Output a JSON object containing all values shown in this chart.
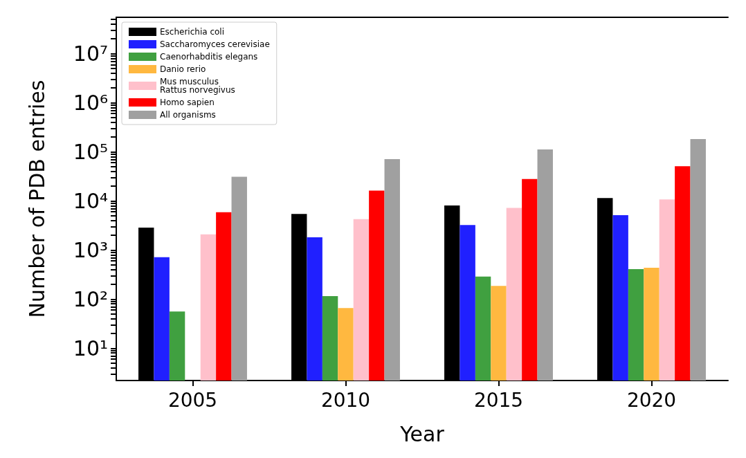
{
  "chart_data": {
    "type": "bar",
    "xlabel": "Year",
    "ylabel": "Number of PDB entries",
    "categories": [
      "2005",
      "2010",
      "2015",
      "2020"
    ],
    "series": [
      {
        "name": "Escherichia coli",
        "color": "#000000",
        "values": [
          2860,
          5430,
          8100,
          11500
        ]
      },
      {
        "name": "Saccharomyces cerevisiae",
        "color": "#2020ff",
        "values": [
          716,
          1820,
          3240,
          5150
        ]
      },
      {
        "name": "Caenorhabditis elegans",
        "color": "#40a040",
        "values": [
          56,
          115,
          288,
          408
        ]
      },
      {
        "name": "Danio rerio",
        "color": "#ffb840",
        "values": [
          null,
          66,
          186,
          436
        ]
      },
      {
        "name": "Mus musculus\nRattus norvegivus",
        "color": "#ffc0cb",
        "values": [
          2090,
          4270,
          7240,
          10700
        ]
      },
      {
        "name": "Homo sapien",
        "color": "#ff0000",
        "values": [
          5900,
          16200,
          28000,
          51000
        ]
      },
      {
        "name": "All organisms",
        "color": "#a0a0a0",
        "values": [
          31000,
          71000,
          112000,
          182000
        ]
      }
    ],
    "log": "y",
    "ylim": [
      2.2,
      55000000
    ],
    "yticks": [
      {
        "value": 3,
        "label": null
      },
      {
        "value": 4,
        "label": null
      },
      {
        "value": 5,
        "label": null
      },
      {
        "value": 6,
        "label": null
      },
      {
        "value": 7,
        "label": null
      },
      {
        "value": 8,
        "label": null
      },
      {
        "value": 9,
        "label": null
      },
      {
        "value": 10,
        "label": "10¹"
      },
      {
        "value": 20,
        "label": null
      },
      {
        "value": 30,
        "label": null
      },
      {
        "value": 40,
        "label": null
      },
      {
        "value": 50,
        "label": null
      },
      {
        "value": 60,
        "label": null
      },
      {
        "value": 70,
        "label": null
      },
      {
        "value": 80,
        "label": null
      },
      {
        "value": 90,
        "label": null
      },
      {
        "value": 100,
        "label": "10²"
      },
      {
        "value": 200,
        "label": null
      },
      {
        "value": 300,
        "label": null
      },
      {
        "value": 400,
        "label": null
      },
      {
        "value": 500,
        "label": null
      },
      {
        "value": 600,
        "label": null
      },
      {
        "value": 700,
        "label": null
      },
      {
        "value": 800,
        "label": null
      },
      {
        "value": 900,
        "label": null
      },
      {
        "value": 1000,
        "label": "10³"
      },
      {
        "value": 2000,
        "label": null
      },
      {
        "value": 3000,
        "label": null
      },
      {
        "value": 4000,
        "label": null
      },
      {
        "value": 5000,
        "label": null
      },
      {
        "value": 6000,
        "label": null
      },
      {
        "value": 7000,
        "label": null
      },
      {
        "value": 8000,
        "label": null
      },
      {
        "value": 9000,
        "label": null
      },
      {
        "value": 10000,
        "label": "10⁴"
      },
      {
        "value": 20000,
        "label": null
      },
      {
        "value": 30000,
        "label": null
      },
      {
        "value": 40000,
        "label": null
      },
      {
        "value": 50000,
        "label": null
      },
      {
        "value": 60000,
        "label": null
      },
      {
        "value": 70000,
        "label": null
      },
      {
        "value": 80000,
        "label": null
      },
      {
        "value": 90000,
        "label": null
      },
      {
        "value": 100000,
        "label": "10⁵"
      },
      {
        "value": 200000,
        "label": null
      },
      {
        "value": 300000,
        "label": null
      },
      {
        "value": 400000,
        "label": null
      },
      {
        "value": 500000,
        "label": null
      },
      {
        "value": 600000,
        "label": null
      },
      {
        "value": 700000,
        "label": null
      },
      {
        "value": 800000,
        "label": null
      },
      {
        "value": 900000,
        "label": null
      },
      {
        "value": 1000000,
        "label": "10⁶"
      },
      {
        "value": 2000000,
        "label": null
      },
      {
        "value": 3000000,
        "label": null
      },
      {
        "value": 4000000,
        "label": null
      },
      {
        "value": 5000000,
        "label": null
      },
      {
        "value": 6000000,
        "label": null
      },
      {
        "value": 7000000,
        "label": null
      },
      {
        "value": 8000000,
        "label": null
      },
      {
        "value": 9000000,
        "label": null
      },
      {
        "value": 10000000,
        "label": "10⁷"
      },
      {
        "value": 20000000,
        "label": null
      },
      {
        "value": 30000000,
        "label": null
      },
      {
        "value": 40000000,
        "label": null
      },
      {
        "value": 50000000,
        "label": null
      }
    ],
    "grid": false,
    "legend": "top left"
  }
}
